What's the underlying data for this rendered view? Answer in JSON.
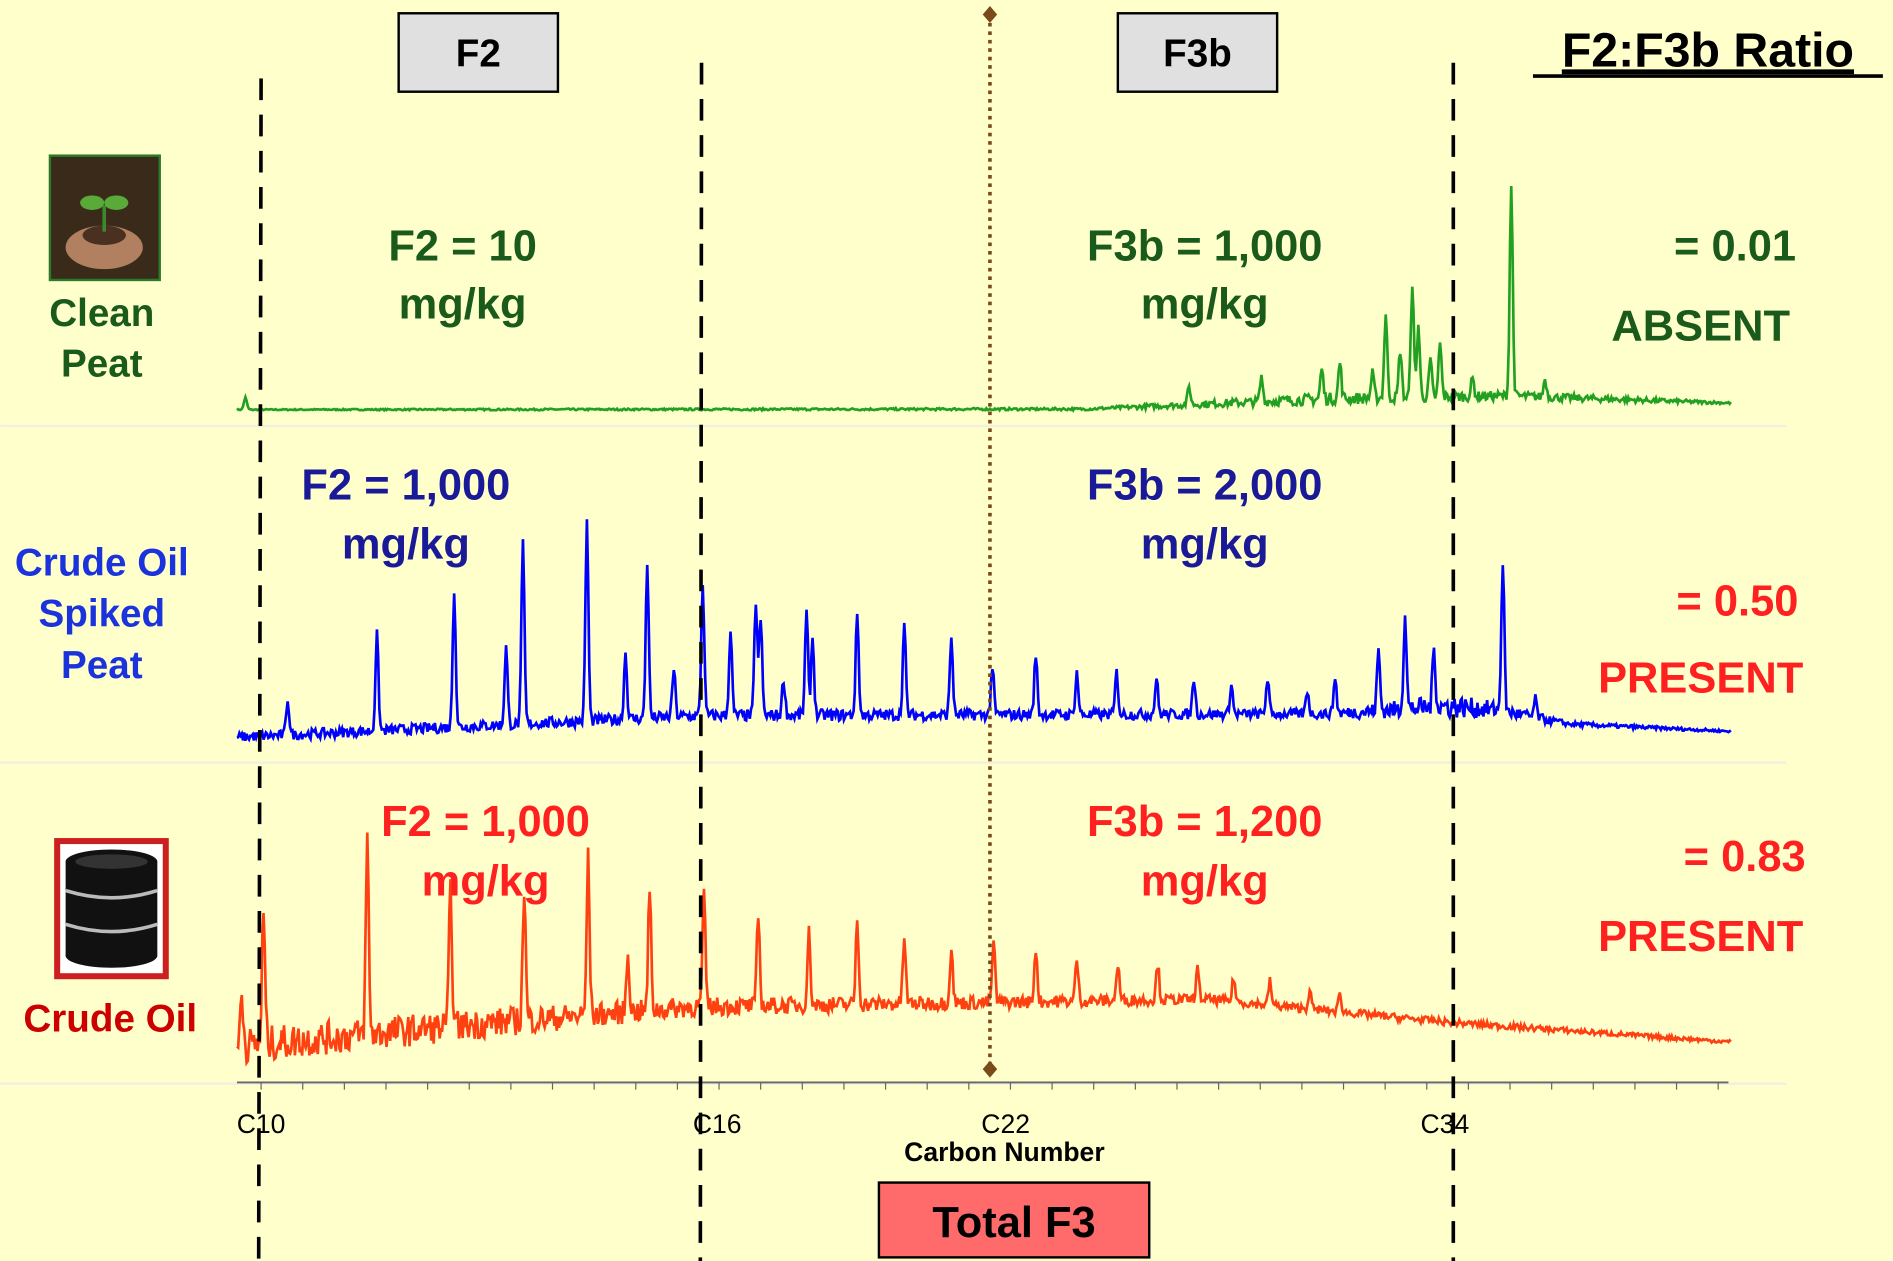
{
  "header": {
    "f2_box": "F2",
    "f3b_box": "F3b",
    "ratio_title": "F2:F3b Ratio"
  },
  "rows": [
    {
      "label": [
        "Clean",
        "Peat"
      ],
      "f2": [
        "F2 = 10",
        "mg/kg"
      ],
      "f3b": [
        "F3b = 1,000",
        "mg/kg"
      ],
      "ratio": "= 0.01",
      "status": "ABSENT"
    },
    {
      "label": [
        "Crude Oil",
        "Spiked",
        "Peat"
      ],
      "f2": [
        "F2 = 1,000",
        "mg/kg"
      ],
      "f3b": [
        "F3b = 2,000",
        "mg/kg"
      ],
      "ratio": "= 0.50",
      "status": "PRESENT"
    },
    {
      "label": [
        "Crude Oil"
      ],
      "f2": [
        "F2 = 1,000",
        "mg/kg"
      ],
      "f3b": [
        "F3b = 1,200",
        "mg/kg"
      ],
      "ratio": "= 0.83",
      "status": "PRESENT"
    }
  ],
  "axis": {
    "ticks": [
      "C10",
      "C16",
      "C22",
      "C34"
    ],
    "title": "Carbon Number"
  },
  "footer": {
    "total": "Total F3"
  }
}
